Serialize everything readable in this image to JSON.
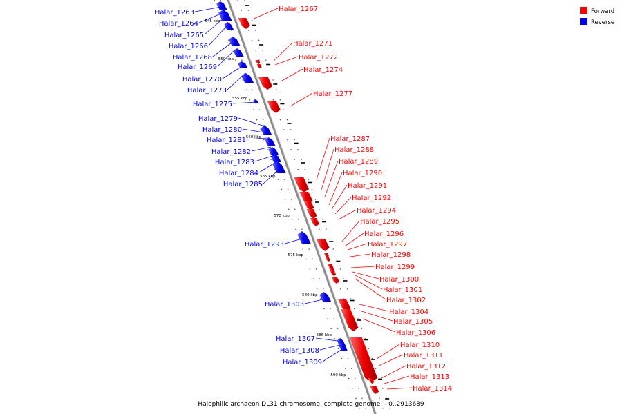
{
  "caption": "Halophilic archaeon DL31 chromosome, complete genome. - 0..2913689",
  "legend": [
    {
      "label": "Forward",
      "color": "#ff0000"
    },
    {
      "label": "Reverse",
      "color": "#0000ff"
    }
  ],
  "colors": {
    "forward": "#ff0000",
    "reverse": "#0000ff",
    "backbone": "#8c8c8c"
  },
  "ticks": [
    "545 kbp",
    "550 kbp",
    "555 kbp",
    "560 kbp",
    "565 kbp",
    "570 kbp",
    "575 kbp",
    "580 kbp",
    "585 kbp",
    "590 kbp"
  ],
  "genes_reverse": [
    "Halar_1263",
    "Halar_1264",
    "Halar_1265",
    "Halar_1266",
    "Halar_1268",
    "Halar_1269",
    "Halar_1270",
    "Halar_1273",
    "Halar_1275",
    "Halar_1279",
    "Halar_1280",
    "Halar_1281",
    "Halar_1282",
    "Halar_1283",
    "Halar_1284",
    "Halar_1285",
    "Halar_1293",
    "Halar_1303",
    "Halar_1307",
    "Halar_1308",
    "Halar_1309"
  ],
  "genes_forward": [
    "Halar_1267",
    "Halar_1271",
    "Halar_1272",
    "Halar_1274",
    "Halar_1277",
    "Halar_1287",
    "Halar_1288",
    "Halar_1289",
    "Halar_1290",
    "Halar_1291",
    "Halar_1292",
    "Halar_1294",
    "Halar_1295",
    "Halar_1296",
    "Halar_1297",
    "Halar_1298",
    "Halar_1299",
    "Halar_1300",
    "Halar_1301",
    "Halar_1302",
    "Halar_1304",
    "Halar_1305",
    "Halar_1306",
    "Halar_1310",
    "Halar_1311",
    "Halar_1312",
    "Halar_1313",
    "Halar_1314"
  ]
}
